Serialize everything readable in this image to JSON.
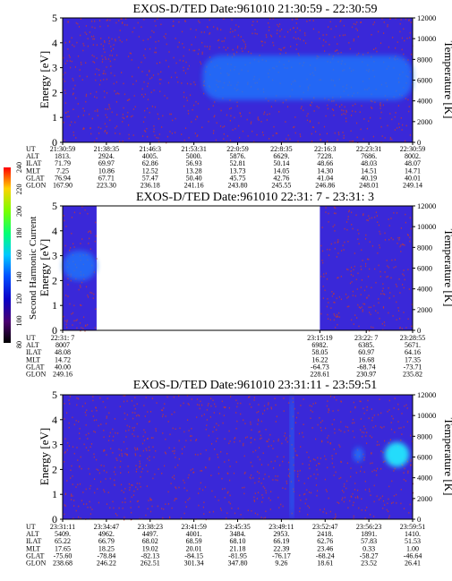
{
  "chart_data": [
    {
      "type": "heatmap",
      "title": "EXOS-D/TED   Date:961010  21:30:59 - 22:30:59",
      "ylabel": "Energy [eV]",
      "y2label": "Temperature [K]",
      "ylim": [
        0,
        5
      ],
      "y_ticks": [
        "0",
        "1",
        "2",
        "3",
        "4",
        "5"
      ],
      "y2lim": [
        0,
        12000
      ],
      "y2_ticks": [
        "0",
        "2000",
        "4000",
        "6000",
        "8000",
        "10000",
        "12000"
      ],
      "data_coverage": [
        [
          0,
          1
        ]
      ],
      "features": [
        {
          "x_from": 0.4,
          "x_to": 1.0,
          "e_center": 2.6,
          "e_halfwidth": 0.9,
          "intensity": "moderate"
        }
      ],
      "table": {
        "rows": [
          "UT",
          "ALT",
          "ILAT",
          "MLT",
          "GLAT",
          "GLON"
        ],
        "columns": [
          [
            "21:30:59",
            "1813.",
            "71.79",
            "7.25",
            "76.94",
            "167.90"
          ],
          [
            "21:38:35",
            "2924.",
            "69.97",
            "10.86",
            "67.71",
            "223.30"
          ],
          [
            "21:46:3",
            "4005.",
            "62.86",
            "12.52",
            "57.47",
            "236.18"
          ],
          [
            "21:53:31",
            "5000.",
            "56.93",
            "13.28",
            "50.40",
            "241.16"
          ],
          [
            "22:0:59",
            "5876.",
            "52.81",
            "13.73",
            "45.75",
            "243.80"
          ],
          [
            "22:8:35",
            "6629.",
            "50.14",
            "14.05",
            "42.76",
            "245.55"
          ],
          [
            "22:16:3",
            "7228.",
            "48.66",
            "14.30",
            "41.04",
            "246.86"
          ],
          [
            "22:23:31",
            "7686.",
            "48.03",
            "14.51",
            "40.19",
            "248.01"
          ],
          [
            "22:30:59",
            "8002.",
            "48.07",
            "14.71",
            "40.01",
            "249.14"
          ]
        ]
      }
    },
    {
      "type": "heatmap",
      "title": "EXOS-D/TED   Date:961010  22:31: 7 - 23:31: 3",
      "ylabel": "Energy [eV]",
      "y2label": "Temperature [K]",
      "ylim": [
        0,
        5
      ],
      "y_ticks": [
        "0",
        "1",
        "2",
        "3",
        "4",
        "5"
      ],
      "y2lim": [
        0,
        12000
      ],
      "y2_ticks": [
        "0",
        "2000",
        "4000",
        "6000",
        "8000",
        "10000",
        "12000"
      ],
      "data_coverage": [
        [
          0,
          0.097
        ],
        [
          0.735,
          1
        ]
      ],
      "features": [
        {
          "x_from": 0.0,
          "x_to": 0.097,
          "e_center": 2.6,
          "e_halfwidth": 0.6,
          "intensity": "moderate"
        }
      ],
      "table": {
        "rows": [
          "UT",
          "ALT",
          "ILAT",
          "MLT",
          "GLAT",
          "GLON"
        ],
        "columns": [
          [
            "22:31: 7",
            "8007",
            "48.08",
            "14.72",
            "40.00",
            "249.16"
          ],
          [
            "23:15:19",
            "6982.",
            "58.05",
            "16.22",
            "-64.73",
            "228.61"
          ],
          [
            "23:22: 7",
            "6385.",
            "60.97",
            "16.68",
            "-68.74",
            "230.97"
          ],
          [
            "23:28:55",
            "5671.",
            "64.16",
            "17.35",
            "-73.71",
            "235.82"
          ]
        ]
      }
    },
    {
      "type": "heatmap",
      "title": "EXOS-D/TED   Date:961010  23:31:11 - 23:59:51",
      "ylabel": "Energy [eV]",
      "y2label": "Temperature [K]",
      "ylim": [
        0,
        5
      ],
      "y_ticks": [
        "0",
        "1",
        "2",
        "3",
        "4",
        "5"
      ],
      "y2lim": [
        0,
        12000
      ],
      "y2_ticks": [
        "0",
        "2000",
        "4000",
        "6000",
        "8000",
        "10000",
        "12000"
      ],
      "data_coverage": [
        [
          0,
          1
        ]
      ],
      "features": [
        {
          "x_from": 0.92,
          "x_to": 0.99,
          "e_center": 2.6,
          "e_halfwidth": 0.5,
          "intensity": "high"
        },
        {
          "x_from": 0.83,
          "x_to": 0.86,
          "e_center": 2.6,
          "e_halfwidth": 0.3,
          "intensity": "moderate"
        },
        {
          "x_from": 0.65,
          "x_to": 0.66,
          "e_center": 2.5,
          "e_halfwidth": 2.5,
          "intensity": "moderate"
        }
      ],
      "table": {
        "rows": [
          "UT",
          "ALT",
          "ILAT",
          "MLT",
          "GLAT",
          "GLON"
        ],
        "columns": [
          [
            "23:31:11",
            "5409.",
            "65.22",
            "17.65",
            "-75.60",
            "238.68"
          ],
          [
            "23:34:47",
            "4962.",
            "66.79",
            "18.25",
            "-78.84",
            "246.22"
          ],
          [
            "23:38:23",
            "4497.",
            "68.02",
            "19.02",
            "-82.13",
            "262.51"
          ],
          [
            "23:41:59",
            "4001.",
            "68.59",
            "20.01",
            "-84.15",
            "301.34"
          ],
          [
            "23:45:35",
            "3484.",
            "68.10",
            "21.18",
            "-81.95",
            "347.80"
          ],
          [
            "23:49:11",
            "2953.",
            "66.19",
            "22.39",
            "-76.17",
            "9.26"
          ],
          [
            "23:52:47",
            "2418.",
            "62.76",
            "23.46",
            "-68.24",
            "18.61"
          ],
          [
            "23:56:23",
            "1891.",
            "57.83",
            "0.33",
            "-58.27",
            "23.52"
          ],
          [
            "23:59:51",
            "1410.",
            "51.53",
            "1.00",
            "-46.64",
            "26.41"
          ]
        ]
      }
    }
  ],
  "colorbar": {
    "label": "Second Harmonic Current",
    "ticks": [
      "80",
      "100",
      "120",
      "140",
      "160",
      "180",
      "200",
      "220",
      "240"
    ],
    "colors": [
      "#000000",
      "#5a007a",
      "#0a00c8",
      "#0050ff",
      "#00c8ff",
      "#00ff78",
      "#78ff00",
      "#ffd200",
      "#ff0000"
    ]
  },
  "colors": {
    "background_fill": "#3a28d8",
    "band": "#1e7bff",
    "bright": "#20f0ff",
    "noise": "#c83a2c"
  }
}
